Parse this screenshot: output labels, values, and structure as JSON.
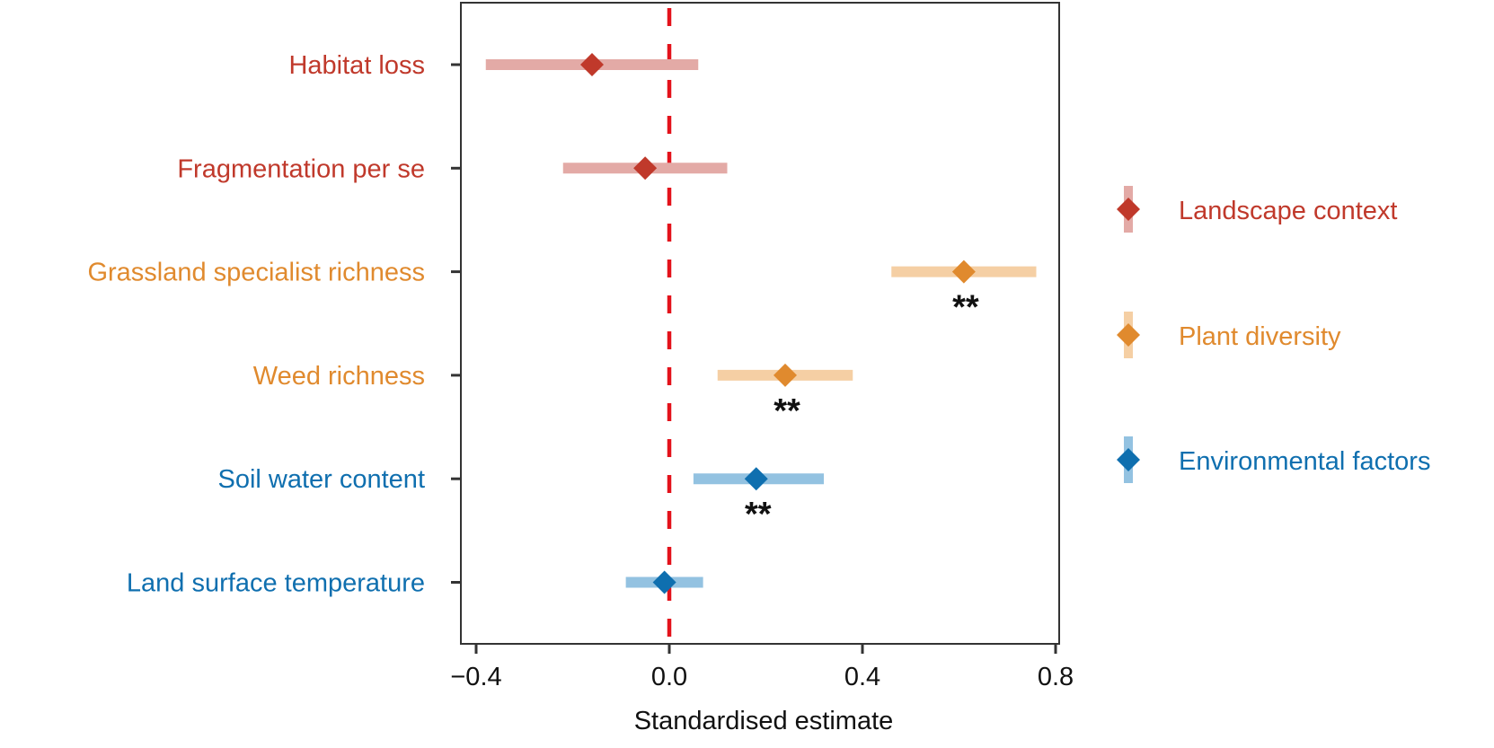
{
  "chart_data": {
    "type": "forest",
    "title": "",
    "xlabel": "Standardised estimate",
    "ylabel": "",
    "xlim": [
      -0.43,
      0.81
    ],
    "xticks": [
      -0.4,
      0.0,
      0.4,
      0.8
    ],
    "xtick_labels": [
      "−0.4",
      "0.0",
      "0.4",
      "0.8"
    ],
    "reference_line": {
      "x": 0.0,
      "style": "dashed",
      "color": "#e3121b"
    },
    "grid": false,
    "legend_position": "right",
    "groups": [
      {
        "name": "Landscape context",
        "color": "#c0392b",
        "ci_color": "#e3aaa6"
      },
      {
        "name": "Plant diversity",
        "color": "#e08a2e",
        "ci_color": "#f5cfa4"
      },
      {
        "name": "Environmental factors",
        "color": "#0f6faf",
        "ci_color": "#93c2e1"
      }
    ],
    "rows": [
      {
        "label": "Habitat loss",
        "group": 0,
        "estimate": -0.16,
        "ci_low": -0.38,
        "ci_high": 0.06,
        "significance": ""
      },
      {
        "label": "Fragmentation per se",
        "group": 0,
        "estimate": -0.05,
        "ci_low": -0.22,
        "ci_high": 0.12,
        "significance": ""
      },
      {
        "label": "Grassland specialist richness",
        "group": 1,
        "estimate": 0.61,
        "ci_low": 0.46,
        "ci_high": 0.76,
        "significance": "**"
      },
      {
        "label": "Weed richness",
        "group": 1,
        "estimate": 0.24,
        "ci_low": 0.1,
        "ci_high": 0.38,
        "significance": "**"
      },
      {
        "label": "Soil water content",
        "group": 2,
        "estimate": 0.18,
        "ci_low": 0.05,
        "ci_high": 0.32,
        "significance": "**"
      },
      {
        "label": "Land surface temperature",
        "group": 2,
        "estimate": -0.01,
        "ci_low": -0.09,
        "ci_high": 0.07,
        "significance": ""
      }
    ]
  }
}
